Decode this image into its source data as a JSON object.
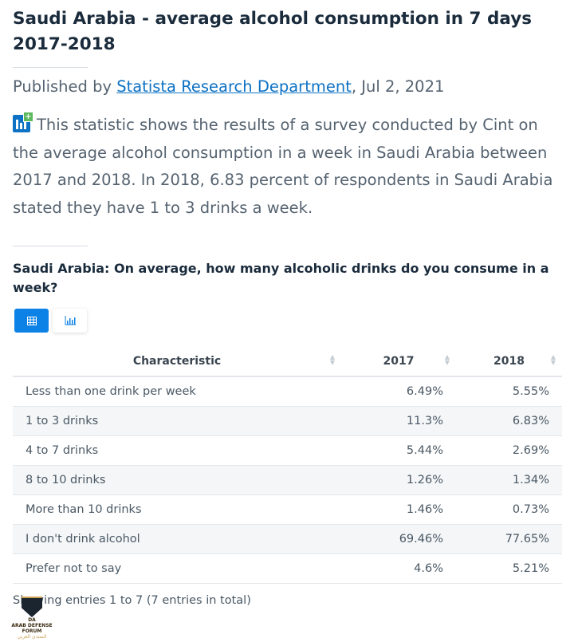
{
  "title": "Saudi Arabia - average alcohol consumption in 7 days 2017-2018",
  "published": {
    "prefix": "Published by ",
    "author": "Statista Research Department",
    "date": ", Jul 2, 2021"
  },
  "description": "This statistic shows the results of a survey conducted by Cint on the average alcohol consumption in a week in Saudi Arabia between 2017 and 2018. In 2018, 6.83 percent of respondents in Saudi Arabia stated they have 1 to 3 drinks a week.",
  "chart_title": "Saudi Arabia: On average, how many alcoholic drinks do you consume in a week?",
  "table": {
    "headers": [
      "Characteristic",
      "2017",
      "2018"
    ],
    "rows": [
      [
        "Less than one drink per week",
        "6.49%",
        "5.55%"
      ],
      [
        "1 to 3 drinks",
        "11.3%",
        "6.83%"
      ],
      [
        "4 to 7 drinks",
        "5.44%",
        "2.69%"
      ],
      [
        "8 to 10 drinks",
        "1.26%",
        "1.34%"
      ],
      [
        "More than 10 drinks",
        "1.46%",
        "0.73%"
      ],
      [
        "I don't drink alcohol",
        "69.46%",
        "77.65%"
      ],
      [
        "Prefer not to say",
        "4.6%",
        "5.21%"
      ]
    ]
  },
  "footer": "Showing entries 1 to 7 (7 entries in total)",
  "watermark": {
    "name": "ARAB DEFENSE FORUM",
    "arabic": "المنتدى العربي للدفاع والتسليح"
  }
}
